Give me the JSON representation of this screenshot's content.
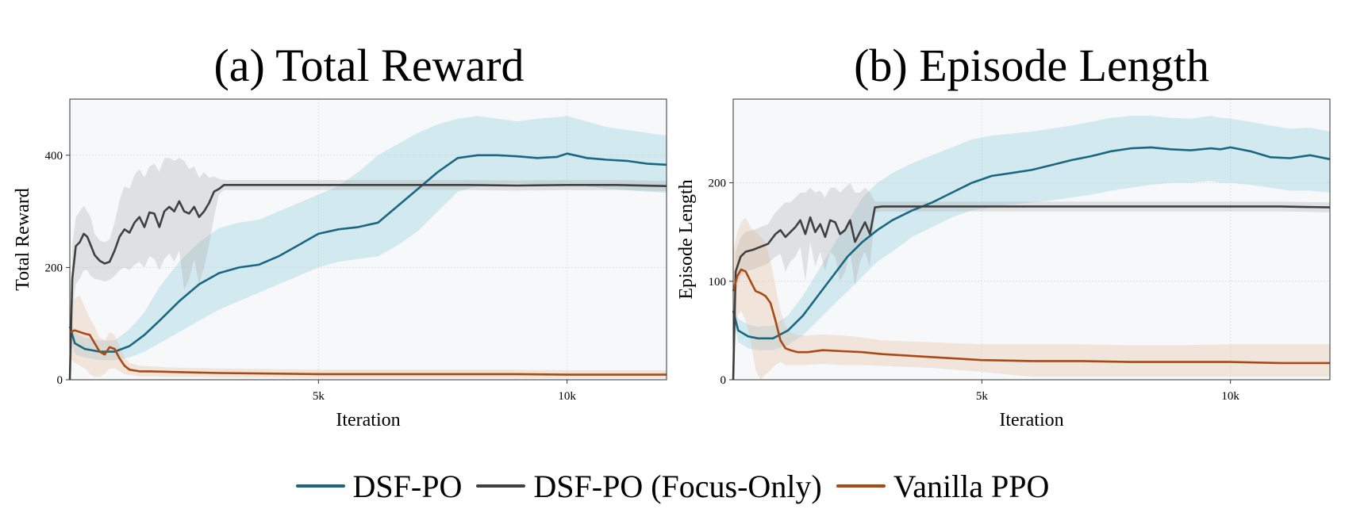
{
  "colors": {
    "dsf_po": "#1a6782",
    "focus_only": "#404040",
    "vanilla": "#a84a14",
    "plot_bg": "#f6f8fa"
  },
  "legend": {
    "items": [
      {
        "label": "DSF-PO",
        "color": "#1a6782"
      },
      {
        "label": "DSF-PO (Focus-Only)",
        "color": "#404040"
      },
      {
        "label": "Vanilla PPO",
        "color": "#a84a14"
      }
    ]
  },
  "chart_data": [
    {
      "type": "line",
      "title": "(a) Total Reward",
      "xlabel": "Iteration",
      "ylabel": "Total Reward",
      "xlim": [
        0,
        12000
      ],
      "ylim": [
        0,
        500
      ],
      "xticks": [
        5000,
        10000
      ],
      "xtick_labels": [
        "5k",
        "10k"
      ],
      "yticks": [
        0,
        200,
        400
      ],
      "ytick_labels": [
        "0",
        "200",
        "400"
      ],
      "grid": true,
      "series": [
        {
          "name": "DSF-PO",
          "x": [
            0,
            100,
            300,
            600,
            900,
            1200,
            1500,
            1800,
            2200,
            2600,
            3000,
            3400,
            3800,
            4200,
            4600,
            5000,
            5400,
            5800,
            6200,
            6600,
            7000,
            7400,
            7800,
            8200,
            8600,
            9000,
            9400,
            9800,
            10000,
            10400,
            10800,
            11200,
            11600,
            12000
          ],
          "mean": [
            95,
            65,
            55,
            50,
            50,
            60,
            80,
            105,
            140,
            170,
            190,
            200,
            205,
            220,
            240,
            260,
            268,
            272,
            280,
            310,
            340,
            370,
            395,
            400,
            400,
            398,
            395,
            397,
            403,
            395,
            392,
            390,
            385,
            383
          ],
          "lower": [
            80,
            45,
            40,
            35,
            35,
            40,
            50,
            65,
            85,
            105,
            125,
            140,
            155,
            170,
            185,
            200,
            210,
            215,
            220,
            240,
            265,
            300,
            335,
            345,
            350,
            350,
            348,
            348,
            350,
            345,
            340,
            338,
            335,
            333
          ],
          "upper": [
            110,
            85,
            75,
            70,
            70,
            90,
            120,
            165,
            210,
            245,
            270,
            280,
            285,
            300,
            315,
            330,
            345,
            370,
            400,
            420,
            440,
            455,
            465,
            470,
            465,
            460,
            465,
            468,
            470,
            460,
            450,
            445,
            440,
            435
          ]
        },
        {
          "name": "DSF-PO (Focus-Only)",
          "x": [
            0,
            50,
            120,
            200,
            280,
            350,
            420,
            500,
            600,
            700,
            800,
            900,
            1000,
            1100,
            1200,
            1300,
            1400,
            1500,
            1600,
            1700,
            1800,
            1900,
            2000,
            2100,
            2200,
            2300,
            2400,
            2500,
            2600,
            2700,
            2800,
            2900,
            3000,
            3100,
            3300,
            4000,
            5000,
            6000,
            7000,
            8000,
            9000,
            10000,
            11000,
            12000
          ],
          "mean": [
            0,
            180,
            238,
            245,
            260,
            255,
            240,
            222,
            212,
            207,
            210,
            230,
            255,
            268,
            262,
            280,
            290,
            272,
            298,
            296,
            272,
            300,
            308,
            300,
            318,
            300,
            296,
            308,
            290,
            300,
            315,
            335,
            340,
            347,
            347,
            347,
            347,
            347,
            347,
            347,
            346,
            347,
            347,
            345
          ],
          "lower": [
            0,
            120,
            170,
            180,
            195,
            195,
            185,
            180,
            178,
            175,
            178,
            185,
            195,
            200,
            195,
            205,
            210,
            200,
            220,
            215,
            195,
            215,
            225,
            210,
            230,
            160,
            180,
            215,
            170,
            200,
            240,
            290,
            330,
            338,
            338,
            338,
            338,
            338,
            338,
            338,
            337,
            338,
            338,
            336
          ],
          "upper": [
            0,
            240,
            290,
            300,
            310,
            300,
            290,
            260,
            248,
            245,
            250,
            280,
            320,
            345,
            340,
            365,
            375,
            360,
            380,
            385,
            370,
            395,
            395,
            390,
            395,
            390,
            375,
            380,
            360,
            370,
            360,
            362,
            358,
            356,
            356,
            356,
            356,
            356,
            356,
            356,
            355,
            356,
            356,
            354
          ]
        },
        {
          "name": "Vanilla PPO",
          "x": [
            0,
            100,
            200,
            300,
            400,
            500,
            600,
            700,
            800,
            900,
            1000,
            1100,
            1200,
            1400,
            1600,
            2000,
            2500,
            3000,
            4000,
            5000,
            6000,
            7000,
            8000,
            9000,
            10000,
            11000,
            12000
          ],
          "mean": [
            85,
            88,
            85,
            82,
            80,
            65,
            50,
            45,
            58,
            55,
            38,
            25,
            18,
            15,
            15,
            14,
            13,
            12,
            11,
            10,
            10,
            10,
            10,
            10,
            9,
            9,
            9
          ],
          "lower": [
            40,
            30,
            25,
            20,
            10,
            5,
            5,
            10,
            20,
            20,
            15,
            10,
            8,
            6,
            6,
            5,
            5,
            4,
            4,
            3,
            3,
            3,
            3,
            3,
            3,
            3,
            3
          ],
          "upper": [
            130,
            145,
            150,
            130,
            110,
            95,
            75,
            70,
            85,
            80,
            60,
            40,
            30,
            25,
            24,
            22,
            21,
            20,
            19,
            18,
            18,
            18,
            18,
            18,
            17,
            17,
            17
          ]
        }
      ]
    },
    {
      "type": "line",
      "title": "(b) Episode Length",
      "xlabel": "Iteration",
      "ylabel": "Episode Length",
      "xlim": [
        0,
        12000
      ],
      "ylim": [
        0,
        285
      ],
      "xticks": [
        5000,
        10000
      ],
      "xtick_labels": [
        "5k",
        "10k"
      ],
      "yticks": [
        0,
        100,
        200
      ],
      "ytick_labels": [
        "0",
        "100",
        "200"
      ],
      "grid": true,
      "series": [
        {
          "name": "DSF-PO",
          "x": [
            0,
            100,
            300,
            500,
            800,
            1100,
            1400,
            1700,
            2000,
            2300,
            2600,
            2900,
            3200,
            3600,
            4000,
            4400,
            4800,
            5200,
            5600,
            6000,
            6400,
            6800,
            7200,
            7600,
            8000,
            8400,
            8800,
            9200,
            9600,
            9800,
            10000,
            10400,
            10800,
            11200,
            11600,
            12000
          ],
          "mean": [
            70,
            50,
            44,
            42,
            42,
            50,
            65,
            85,
            105,
            125,
            140,
            152,
            162,
            172,
            180,
            190,
            200,
            207,
            210,
            213,
            218,
            223,
            227,
            232,
            235,
            236,
            234,
            233,
            235,
            234,
            236,
            232,
            226,
            225,
            228,
            224
          ],
          "lower": [
            60,
            38,
            32,
            30,
            30,
            35,
            45,
            60,
            75,
            90,
            105,
            120,
            130,
            145,
            155,
            165,
            172,
            175,
            178,
            180,
            182,
            185,
            188,
            192,
            195,
            198,
            200,
            200,
            202,
            200,
            200,
            198,
            195,
            192,
            192,
            190
          ],
          "upper": [
            80,
            62,
            56,
            54,
            55,
            65,
            85,
            110,
            135,
            160,
            185,
            200,
            210,
            220,
            228,
            236,
            244,
            248,
            250,
            252,
            255,
            258,
            262,
            266,
            268,
            268,
            266,
            265,
            268,
            266,
            265,
            262,
            258,
            255,
            256,
            252
          ]
        },
        {
          "name": "DSF-PO (Focus-Only)",
          "x": [
            0,
            50,
            150,
            250,
            400,
            550,
            700,
            850,
            950,
            1050,
            1150,
            1250,
            1350,
            1450,
            1550,
            1650,
            1750,
            1850,
            1950,
            2050,
            2150,
            2250,
            2350,
            2450,
            2550,
            2650,
            2750,
            2850,
            3000,
            4000,
            5000,
            6000,
            7000,
            8000,
            9000,
            10000,
            11000,
            12000
          ],
          "mean": [
            0,
            110,
            125,
            130,
            132,
            135,
            138,
            148,
            152,
            145,
            150,
            155,
            162,
            148,
            165,
            150,
            158,
            145,
            162,
            160,
            148,
            152,
            162,
            140,
            150,
            160,
            148,
            175,
            176,
            176,
            176,
            176,
            176,
            176,
            176,
            176,
            176,
            175
          ],
          "lower": [
            0,
            90,
            105,
            110,
            112,
            115,
            118,
            125,
            128,
            110,
            120,
            125,
            135,
            100,
            140,
            115,
            130,
            110,
            130,
            125,
            100,
            110,
            130,
            95,
            120,
            130,
            115,
            170,
            171,
            171,
            171,
            171,
            171,
            171,
            171,
            171,
            171,
            170
          ],
          "upper": [
            0,
            130,
            145,
            150,
            152,
            155,
            158,
            170,
            175,
            180,
            180,
            185,
            190,
            190,
            195,
            190,
            192,
            185,
            195,
            195,
            190,
            195,
            200,
            190,
            190,
            195,
            190,
            181,
            181,
            181,
            181,
            181,
            181,
            181,
            181,
            181,
            181,
            180
          ],
          "note_only_fill_area_visible": ""
        },
        {
          "name": "Vanilla PPO",
          "x": [
            0,
            80,
            160,
            250,
            350,
            450,
            550,
            650,
            750,
            850,
            950,
            1050,
            1150,
            1300,
            1500,
            1800,
            2200,
            2600,
            3000,
            4000,
            5000,
            6000,
            7000,
            8000,
            9000,
            10000,
            11000,
            12000
          ],
          "mean": [
            90,
            105,
            112,
            110,
            100,
            90,
            88,
            85,
            78,
            60,
            40,
            32,
            30,
            28,
            28,
            30,
            29,
            28,
            26,
            23,
            20,
            19,
            19,
            18,
            18,
            18,
            17,
            17
          ],
          "lower": [
            50,
            65,
            70,
            60,
            40,
            10,
            0,
            5,
            10,
            15,
            18,
            15,
            15,
            15,
            15,
            16,
            15,
            15,
            14,
            12,
            8,
            3,
            3,
            3,
            3,
            3,
            3,
            3
          ],
          "upper": [
            130,
            150,
            160,
            165,
            155,
            150,
            145,
            140,
            120,
            95,
            70,
            55,
            48,
            45,
            45,
            46,
            45,
            43,
            40,
            38,
            36,
            36,
            36,
            35,
            35,
            36,
            36,
            36
          ]
        }
      ]
    }
  ]
}
